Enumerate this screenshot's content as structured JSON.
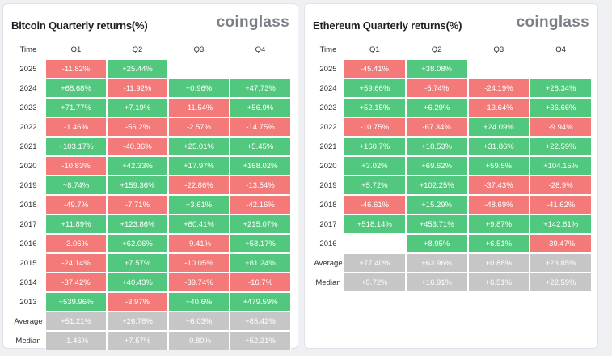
{
  "bitcoin": {
    "title": "Bitcoin Quarterly returns(%)",
    "brand": "coinglass",
    "headers": [
      "Time",
      "Q1",
      "Q2",
      "Q3",
      "Q4"
    ],
    "rows": [
      {
        "label": "2025",
        "cells": [
          "-11.82%",
          "+25.44%",
          "",
          ""
        ]
      },
      {
        "label": "2024",
        "cells": [
          "+68.68%",
          "-11.92%",
          "+0.96%",
          "+47.73%"
        ]
      },
      {
        "label": "2023",
        "cells": [
          "+71.77%",
          "+7.19%",
          "-11.54%",
          "+56.9%"
        ]
      },
      {
        "label": "2022",
        "cells": [
          "-1.46%",
          "-56.2%",
          "-2.57%",
          "-14.75%"
        ]
      },
      {
        "label": "2021",
        "cells": [
          "+103.17%",
          "-40.36%",
          "+25.01%",
          "+5.45%"
        ]
      },
      {
        "label": "2020",
        "cells": [
          "-10.83%",
          "+42.33%",
          "+17.97%",
          "+168.02%"
        ]
      },
      {
        "label": "2019",
        "cells": [
          "+8.74%",
          "+159.36%",
          "-22.86%",
          "-13.54%"
        ]
      },
      {
        "label": "2018",
        "cells": [
          "-49.7%",
          "-7.71%",
          "+3.61%",
          "-42.16%"
        ]
      },
      {
        "label": "2017",
        "cells": [
          "+11.89%",
          "+123.86%",
          "+80.41%",
          "+215.07%"
        ]
      },
      {
        "label": "2016",
        "cells": [
          "-3.06%",
          "+62.06%",
          "-9.41%",
          "+58.17%"
        ]
      },
      {
        "label": "2015",
        "cells": [
          "-24.14%",
          "+7.57%",
          "-10.05%",
          "+81.24%"
        ]
      },
      {
        "label": "2014",
        "cells": [
          "-37.42%",
          "+40.43%",
          "-39.74%",
          "-16.7%"
        ]
      },
      {
        "label": "2013",
        "cells": [
          "+539.96%",
          "-3.97%",
          "+40.6%",
          "+479.59%"
        ]
      }
    ],
    "summary": [
      {
        "label": "Average",
        "cells": [
          "+51.21%",
          "+26.78%",
          "+6.03%",
          "+85.42%"
        ]
      },
      {
        "label": "Median",
        "cells": [
          "-1.46%",
          "+7.57%",
          "-0.80%",
          "+52.31%"
        ]
      }
    ]
  },
  "ethereum": {
    "title": "Ethereum Quarterly returns(%)",
    "brand": "coinglass",
    "headers": [
      "Time",
      "Q1",
      "Q2",
      "Q3",
      "Q4"
    ],
    "rows": [
      {
        "label": "2025",
        "cells": [
          "-45.41%",
          "+38.08%",
          "",
          ""
        ]
      },
      {
        "label": "2024",
        "cells": [
          "+59.66%",
          "-5.74%",
          "-24.19%",
          "+28.34%"
        ]
      },
      {
        "label": "2023",
        "cells": [
          "+52.15%",
          "+6.29%",
          "-13.64%",
          "+36.66%"
        ]
      },
      {
        "label": "2022",
        "cells": [
          "-10.75%",
          "-67.34%",
          "+24.09%",
          "-9.94%"
        ]
      },
      {
        "label": "2021",
        "cells": [
          "+160.7%",
          "+18.53%",
          "+31.86%",
          "+22.59%"
        ]
      },
      {
        "label": "2020",
        "cells": [
          "+3.02%",
          "+69.62%",
          "+59.5%",
          "+104.15%"
        ]
      },
      {
        "label": "2019",
        "cells": [
          "+5.72%",
          "+102.25%",
          "-37.43%",
          "-28.9%"
        ]
      },
      {
        "label": "2018",
        "cells": [
          "-46.61%",
          "+15.29%",
          "-48.69%",
          "-41.62%"
        ]
      },
      {
        "label": "2017",
        "cells": [
          "+518.14%",
          "+453.71%",
          "+9.87%",
          "+142.81%"
        ]
      },
      {
        "label": "2016",
        "cells": [
          "",
          "+8.95%",
          "+6.51%",
          "-39.47%"
        ]
      }
    ],
    "summary": [
      {
        "label": "Average",
        "cells": [
          "+77.40%",
          "+63.96%",
          "+0.88%",
          "+23.85%"
        ]
      },
      {
        "label": "Median",
        "cells": [
          "+5.72%",
          "+16.91%",
          "+6.51%",
          "+22.59%"
        ]
      }
    ]
  }
}
